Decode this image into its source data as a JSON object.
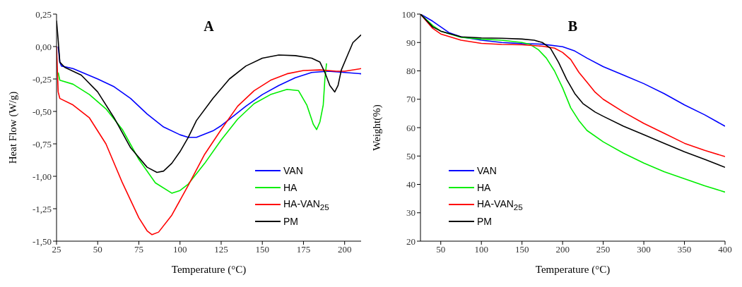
{
  "chart_data": [
    {
      "type": "line",
      "title": "A",
      "xlabel": "Temperature (°C)",
      "ylabel": "Heat Flow (W/g)",
      "xlim": [
        25,
        210
      ],
      "xticks": [
        25,
        50,
        75,
        100,
        125,
        150,
        175,
        200
      ],
      "ylim": [
        -1.5,
        0.25
      ],
      "yticks": [
        {
          "value": -1.5,
          "label": "-1,50"
        },
        {
          "value": -1.25,
          "label": "-1,25"
        },
        {
          "value": -1,
          "label": "-1,00"
        },
        {
          "value": -0.75,
          "label": "-0,75"
        },
        {
          "value": -0.5,
          "label": "-0,50"
        },
        {
          "value": -0.25,
          "label": "-0,25"
        },
        {
          "value": 0,
          "label": "0,00"
        },
        {
          "value": 0.25,
          "label": "0,25"
        }
      ],
      "grid": false,
      "legend": "bottom right",
      "marker": "none",
      "line_style": "solid",
      "series": [
        {
          "name": "VAN",
          "color": "#0000ff",
          "x": [
            26,
            27,
            28,
            35,
            50,
            60,
            70,
            80,
            90,
            100,
            105,
            110,
            120,
            125,
            130,
            140,
            150,
            160,
            170,
            180,
            190,
            200,
            210
          ],
          "values": [
            0.0,
            -0.12,
            -0.15,
            -0.17,
            -0.25,
            -0.31,
            -0.4,
            -0.52,
            -0.62,
            -0.68,
            -0.7,
            -0.7,
            -0.65,
            -0.61,
            -0.56,
            -0.46,
            -0.37,
            -0.3,
            -0.24,
            -0.2,
            -0.19,
            -0.2,
            -0.21
          ]
        },
        {
          "name": "HA",
          "color": "#00ee00",
          "x": [
            26,
            27,
            35,
            45,
            55,
            65,
            75,
            85,
            95,
            100,
            105,
            115,
            125,
            135,
            145,
            155,
            165,
            172,
            177,
            181,
            183,
            185,
            187,
            188,
            189
          ],
          "values": [
            -0.2,
            -0.26,
            -0.29,
            -0.37,
            -0.48,
            -0.64,
            -0.87,
            -1.05,
            -1.13,
            -1.11,
            -1.06,
            -0.9,
            -0.72,
            -0.56,
            -0.44,
            -0.37,
            -0.33,
            -0.34,
            -0.45,
            -0.6,
            -0.64,
            -0.58,
            -0.45,
            -0.25,
            -0.13
          ]
        },
        {
          "name": "HA-VAN$_{25}$",
          "color": "#ff0000",
          "x": [
            25,
            26,
            27,
            35,
            45,
            55,
            65,
            75,
            80,
            83,
            87,
            95,
            105,
            115,
            125,
            135,
            145,
            155,
            165,
            175,
            185,
            195,
            200,
            210
          ],
          "values": [
            0.0,
            -0.35,
            -0.4,
            -0.45,
            -0.55,
            -0.75,
            -1.05,
            -1.32,
            -1.42,
            -1.45,
            -1.43,
            -1.3,
            -1.07,
            -0.83,
            -0.64,
            -0.46,
            -0.34,
            -0.26,
            -0.21,
            -0.185,
            -0.18,
            -0.19,
            -0.19,
            -0.17
          ]
        },
        {
          "name": "PM",
          "color": "#000000",
          "x": [
            25,
            26,
            27,
            30,
            40,
            50,
            60,
            70,
            80,
            86,
            90,
            95,
            100,
            105,
            110,
            120,
            130,
            140,
            150,
            160,
            170,
            180,
            185,
            188,
            191,
            194,
            196,
            198,
            202,
            205,
            210
          ],
          "values": [
            0.2,
            0.05,
            -0.12,
            -0.16,
            -0.22,
            -0.35,
            -0.55,
            -0.78,
            -0.93,
            -0.97,
            -0.96,
            -0.9,
            -0.81,
            -0.7,
            -0.57,
            -0.4,
            -0.25,
            -0.15,
            -0.09,
            -0.065,
            -0.07,
            -0.09,
            -0.12,
            -0.2,
            -0.3,
            -0.35,
            -0.3,
            -0.18,
            -0.06,
            0.03,
            0.09
          ]
        }
      ]
    },
    {
      "type": "line",
      "title": "B",
      "xlabel": "Temperature (°C)",
      "ylabel": "Weight(%)",
      "xlim": [
        25,
        400
      ],
      "xticks": [
        50,
        100,
        150,
        200,
        250,
        300,
        350,
        400
      ],
      "ylim": [
        20,
        100
      ],
      "yticks": [
        20,
        30,
        40,
        50,
        60,
        70,
        80,
        90,
        100
      ],
      "grid": false,
      "legend": "bottom left",
      "marker": "none",
      "line_style": "solid",
      "series": [
        {
          "name": "VAN",
          "color": "#0000ff",
          "x": [
            25,
            40,
            50,
            60,
            75,
            100,
            125,
            150,
            175,
            200,
            215,
            230,
            250,
            275,
            300,
            325,
            350,
            375,
            400
          ],
          "values": [
            100,
            97.5,
            95.5,
            93.5,
            92,
            90.8,
            90,
            89.6,
            89.4,
            88.5,
            87,
            84.5,
            81.5,
            78.5,
            75.5,
            72,
            68,
            64.5,
            60.5
          ]
        },
        {
          "name": "HA",
          "color": "#00ee00",
          "x": [
            25,
            40,
            50,
            75,
            100,
            125,
            150,
            160,
            170,
            180,
            190,
            200,
            210,
            220,
            230,
            250,
            275,
            300,
            325,
            350,
            375,
            400
          ],
          "values": [
            100,
            96,
            94,
            91.8,
            91.2,
            90.8,
            90,
            89.3,
            87.5,
            84.5,
            80,
            74,
            67,
            62.5,
            59,
            55,
            51,
            47.5,
            44.5,
            42,
            39.5,
            37.3
          ]
        },
        {
          "name": "HA-VAN$_{25}$",
          "color": "#ff0000",
          "x": [
            25,
            40,
            50,
            75,
            100,
            125,
            150,
            175,
            190,
            200,
            210,
            220,
            230,
            240,
            250,
            275,
            300,
            325,
            350,
            375,
            400
          ],
          "values": [
            100,
            95,
            93,
            90.8,
            89.7,
            89.3,
            89.2,
            88.7,
            88,
            86.5,
            84,
            79.5,
            76,
            72.5,
            70,
            65.5,
            61.5,
            58,
            54.5,
            52,
            49.8
          ]
        },
        {
          "name": "PM",
          "color": "#000000",
          "x": [
            25,
            40,
            50,
            75,
            100,
            125,
            150,
            165,
            175,
            185,
            195,
            205,
            215,
            225,
            240,
            250,
            275,
            300,
            325,
            350,
            375,
            400
          ],
          "values": [
            100,
            95.5,
            94,
            92,
            91.6,
            91.5,
            91.2,
            90.8,
            90,
            88,
            83,
            77,
            72,
            68.5,
            65.5,
            64,
            60.5,
            57.5,
            54.5,
            51.5,
            48.8,
            46
          ]
        }
      ]
    }
  ]
}
